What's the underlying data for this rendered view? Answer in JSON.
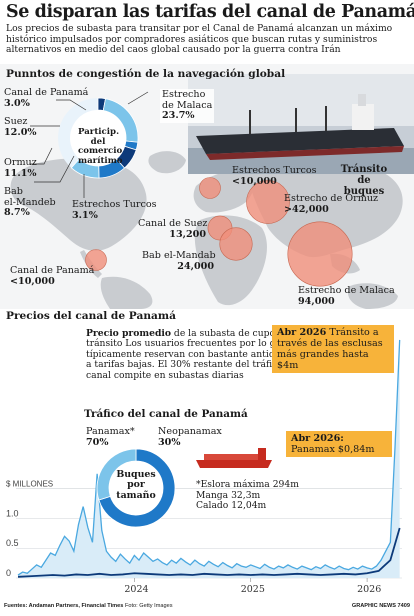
{
  "header": {
    "title": "Se disparan las tarifas del canal de Panamá",
    "subtitle": "Los precios de subasta para transitar por el Canal de Panamá alcanzan un máximo histórico impulsados por compradores asiáticos que buscan rutas y suministros alternativos en medio del caos global causado por la guerra contra Irán"
  },
  "map": {
    "heading": "Punntos de congestión de la navegación global",
    "legend_title": "Tránsito de buques",
    "donut_center_label": "Particip. del comercio marítimo",
    "colors": {
      "ring_dark": "#0d3a7a",
      "ring_mid": "#1f79c8",
      "ring_light": "#7cc4ea",
      "bubble": "#f08f7b"
    }
  },
  "chart_data": [
    {
      "type": "pie",
      "title": "Particip. del comercio marítimo",
      "labels": [
        "Canal de Panamá",
        "Estrecho de Malaca",
        "Estrechos Turcos",
        "Bab el-Mandeb",
        "Ormuz",
        "Suez"
      ],
      "labels_print": [
        "Canal de Panamá",
        "Estrecho de Malaca",
        "Estrechos Turcos",
        "Bab el-Mandeb",
        "Ormuz",
        "Suez"
      ],
      "values": [
        3.0,
        23.7,
        3.1,
        8.7,
        11.1,
        12.0
      ],
      "value_labels": [
        "3.0%",
        "23.7%",
        "3.1%",
        "8.7%",
        "11.1%",
        "12.0%"
      ],
      "total": 100
    },
    {
      "type": "scatter",
      "title": "Tránsito de buques",
      "points": [
        {
          "label": "Canal de Panamá",
          "value": 10000,
          "display": "<10,000"
        },
        {
          "label": "Estrechos Turcos",
          "value": 10000,
          "display": "<10,000"
        },
        {
          "label": "Estrecho de Ormuz",
          "value": 42000,
          "display": ">42,000"
        },
        {
          "label": "Canal de Suez",
          "value": 13200,
          "display": "13,200"
        },
        {
          "label": "Bab el-Mandab",
          "value": 24000,
          "display": "24,000"
        },
        {
          "label": "Estrecho de Malaca",
          "value": 94000,
          "display": "94,000"
        }
      ]
    },
    {
      "type": "line",
      "title": "Precios del canal de Panamá",
      "ylabel": "$ MILLONES",
      "ylim": [
        0,
        4.1
      ],
      "yticks": [
        0,
        0.5,
        1,
        1.5
      ],
      "ytick_labels": [
        "0",
        "0.5",
        "1.0",
        "$ MILLONES"
      ],
      "xticks": [
        "2024",
        "2025",
        "2026"
      ],
      "series": [
        {
          "name": "Precio promedio",
          "color": "#4aa8e0",
          "x": [
            2023.0,
            2023.04,
            2023.08,
            2023.12,
            2023.16,
            2023.2,
            2023.24,
            2023.28,
            2023.32,
            2023.36,
            2023.4,
            2023.44,
            2023.48,
            2023.52,
            2023.56,
            2023.6,
            2023.64,
            2023.68,
            2023.72,
            2023.76,
            2023.8,
            2023.84,
            2023.88,
            2023.92,
            2023.96,
            2024.0,
            2024.04,
            2024.08,
            2024.12,
            2024.16,
            2024.2,
            2024.24,
            2024.28,
            2024.32,
            2024.36,
            2024.4,
            2024.44,
            2024.48,
            2024.52,
            2024.56,
            2024.6,
            2024.64,
            2024.68,
            2024.72,
            2024.76,
            2024.8,
            2024.84,
            2024.88,
            2024.92,
            2024.96,
            2025.0,
            2025.04,
            2025.08,
            2025.12,
            2025.16,
            2025.2,
            2025.24,
            2025.28,
            2025.32,
            2025.36,
            2025.4,
            2025.44,
            2025.48,
            2025.52,
            2025.56,
            2025.6,
            2025.64,
            2025.68,
            2025.72,
            2025.76,
            2025.8,
            2025.84,
            2025.88,
            2025.92,
            2025.96,
            2026.0,
            2026.04,
            2026.08,
            2026.12,
            2026.16,
            2026.2,
            2026.24,
            2026.28
          ],
          "y": [
            0.05,
            0.1,
            0.08,
            0.15,
            0.22,
            0.18,
            0.3,
            0.42,
            0.38,
            0.55,
            0.7,
            0.62,
            0.45,
            0.9,
            1.2,
            0.85,
            0.6,
            1.75,
            0.8,
            0.45,
            0.35,
            0.28,
            0.4,
            0.32,
            0.25,
            0.38,
            0.3,
            0.42,
            0.35,
            0.28,
            0.32,
            0.26,
            0.22,
            0.3,
            0.25,
            0.33,
            0.27,
            0.22,
            0.3,
            0.24,
            0.2,
            0.28,
            0.23,
            0.19,
            0.26,
            0.21,
            0.17,
            0.24,
            0.2,
            0.18,
            0.22,
            0.19,
            0.16,
            0.23,
            0.18,
            0.15,
            0.2,
            0.17,
            0.22,
            0.18,
            0.15,
            0.2,
            0.17,
            0.14,
            0.19,
            0.16,
            0.22,
            0.18,
            0.15,
            0.2,
            0.16,
            0.14,
            0.18,
            0.15,
            0.2,
            0.17,
            0.15,
            0.2,
            0.3,
            0.45,
            0.6,
            2.2,
            4.0
          ]
        },
        {
          "name": "Panamax",
          "color": "#0d3a7a",
          "x": [
            2023.0,
            2023.1,
            2023.2,
            2023.3,
            2023.4,
            2023.5,
            2023.6,
            2023.7,
            2023.8,
            2023.9,
            2024.0,
            2024.1,
            2024.2,
            2024.3,
            2024.4,
            2024.5,
            2024.6,
            2024.7,
            2024.8,
            2024.9,
            2025.0,
            2025.1,
            2025.2,
            2025.3,
            2025.4,
            2025.5,
            2025.6,
            2025.7,
            2025.8,
            2025.9,
            2026.0,
            2026.1,
            2026.2,
            2026.28
          ],
          "y": [
            0.02,
            0.03,
            0.04,
            0.05,
            0.04,
            0.06,
            0.05,
            0.07,
            0.05,
            0.06,
            0.08,
            0.07,
            0.06,
            0.05,
            0.06,
            0.05,
            0.07,
            0.06,
            0.05,
            0.06,
            0.05,
            0.06,
            0.05,
            0.06,
            0.07,
            0.06,
            0.05,
            0.06,
            0.07,
            0.06,
            0.08,
            0.12,
            0.3,
            0.84
          ]
        }
      ]
    },
    {
      "type": "pie",
      "title": "Buques por tamaño",
      "labels": [
        "Panamax",
        "Neopanamax"
      ],
      "values": [
        70,
        30
      ],
      "value_labels": [
        "70%",
        "30%"
      ]
    }
  ],
  "map_labels": {
    "panama": {
      "name": "Canal de Panamá",
      "value": "3.0%"
    },
    "suez": {
      "name": "Suez",
      "value": "12.0%"
    },
    "ormuz": {
      "name": "Ormuz",
      "value": "11.1%"
    },
    "bab": {
      "name1": "Bab",
      "name2": "el-Mandeb",
      "value": "8.7%"
    },
    "turcos": {
      "name": "Estrechos Turcos",
      "value": "3.1%"
    },
    "malaca": {
      "name1": "Estrecho",
      "name2": "de",
      "name3": "Malaca",
      "value": "23.7%"
    },
    "b_turcos": {
      "name": "Estrechos Turcos",
      "value": "<10,000"
    },
    "b_ormuz": {
      "name": "Estrecho de Ormuz",
      "value": ">42,000"
    },
    "b_suez": {
      "name": "Canal de Suez",
      "value": "13,200"
    },
    "b_bab": {
      "name": "Bab el-Mandab",
      "value": "24,000"
    },
    "b_malaca": {
      "name": "Estrecho de Malaca",
      "value": "94,000"
    },
    "b_panama": {
      "name": "Canal de Panamá",
      "value": "<10,000"
    }
  },
  "price": {
    "heading": "Precios del canal de Panamá",
    "note_bold": "Precio promedio",
    "note_text": " de la subasta de cupo de tránsito Los usuarios frecuentes por lo general típicamente reservan con bastante anticipación a tarifas bajas. El 30% restante del tráfico del canal compite en subastas diarias",
    "callout1_bold": "Abr 2026",
    "callout1_text": "Tránsito a través de las esclusas más grandes hasta $4m",
    "callout2_bold": "Abr 2026:",
    "callout2_text": "Panamax $0,84m"
  },
  "traffic": {
    "heading": "Tráfico del canal de Panamá",
    "donut_center_label": "Buques por tamaño",
    "panamax_label": "Panamax",
    "panamax_suffix": "*",
    "panamax_value": "70%",
    "neo_label": "Neopanamax",
    "neo_value": "30%",
    "specs": [
      "*Eslora máxima 294m",
      "Manga 32,3m",
      "Calado 12,04m"
    ]
  },
  "footer": {
    "sources": "Fuentes: Andaman Partners, Financial Times",
    "photo": "Foto: Getty Images",
    "credit": "GRAPHIC NEWS",
    "code": "7409"
  }
}
